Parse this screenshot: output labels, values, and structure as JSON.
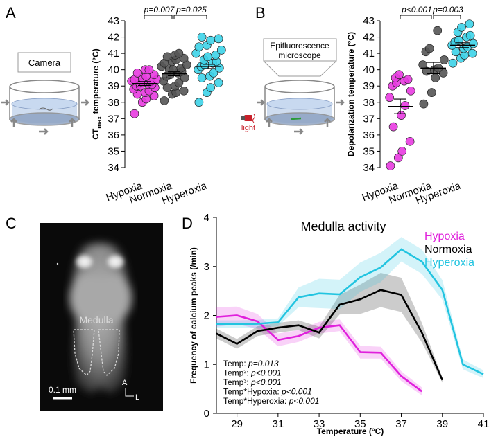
{
  "panels": {
    "A": {
      "label": "A",
      "camera_label": "Camera",
      "pvalues": [
        "p=0.007",
        "p=0.025"
      ],
      "ylabel_main": "CT",
      "ylabel_sub": "max",
      "ylabel_rest": " temperature (°C)"
    },
    "B": {
      "label": "B",
      "scope_label_line1": "Epifluorescence",
      "scope_label_line2": "microscope",
      "light_label": "light",
      "pvalues": [
        "p<0.001",
        "p=0.003"
      ]
    },
    "C": {
      "label": "C",
      "region_label": "Medulla",
      "scale_label": "0.1 mm",
      "axis_a": "A",
      "axis_l": "L"
    },
    "D": {
      "label": "D",
      "stats_lines": [
        {
          "prefix": "Temp:  ",
          "value": "p=0.013"
        },
        {
          "prefix": "Temp²: ",
          "value": "p<0.001"
        },
        {
          "prefix": "Temp³: ",
          "value": "p<0.001"
        },
        {
          "prefix": "Temp*Hypoxia: ",
          "value": "p<0.001"
        },
        {
          "prefix": "Temp*Hyperoxia: ",
          "value": "p<0.001"
        }
      ]
    }
  },
  "colors": {
    "hypoxia": "#e83be0",
    "normoxia": "#555555",
    "hyperoxia": "#3dd3e8",
    "line_hypoxia": "#e020dc",
    "line_normoxia": "#000000",
    "line_hyperoxia": "#22c4e0"
  },
  "chart_data": [
    {
      "type": "scatter",
      "panel": "A",
      "title": "",
      "ylabel": "CTmax temperature (°C)",
      "ylim": [
        34,
        43
      ],
      "yticks": [
        34,
        35,
        36,
        37,
        38,
        39,
        40,
        41,
        42,
        43
      ],
      "categories": [
        "Hypoxia",
        "Normoxia",
        "Hyperoxia"
      ],
      "series": [
        {
          "name": "Hypoxia",
          "mean": 39.15,
          "sem": 0.12,
          "values": [
            37.3,
            38.0,
            38.2,
            38.4,
            38.5,
            38.6,
            38.7,
            38.8,
            38.9,
            39.0,
            39.0,
            39.1,
            39.1,
            39.2,
            39.2,
            39.3,
            39.3,
            39.4,
            39.4,
            39.5,
            39.6,
            39.7,
            39.8,
            40.0,
            40.0
          ]
        },
        {
          "name": "Normoxia",
          "mean": 39.75,
          "sem": 0.12,
          "values": [
            38.1,
            38.5,
            38.6,
            38.7,
            38.9,
            39.0,
            39.2,
            39.3,
            39.5,
            39.6,
            39.7,
            39.8,
            39.9,
            40.0,
            40.0,
            40.1,
            40.2,
            40.3,
            40.4,
            40.5,
            40.6,
            40.7,
            40.8,
            40.9,
            41.0
          ]
        },
        {
          "name": "Hyperoxia",
          "mean": 40.2,
          "sem": 0.13,
          "values": [
            38.0,
            38.6,
            38.9,
            39.2,
            39.5,
            39.6,
            39.8,
            40.0,
            40.1,
            40.2,
            40.3,
            40.4,
            40.5,
            40.6,
            40.8,
            40.9,
            41.0,
            41.2,
            41.4,
            41.5,
            41.8,
            41.9,
            42.0
          ]
        }
      ],
      "comparisons": [
        {
          "from": "Hypoxia",
          "to": "Normoxia",
          "label": "p=0.007"
        },
        {
          "from": "Normoxia",
          "to": "Hyperoxia",
          "label": "p=0.025"
        }
      ]
    },
    {
      "type": "scatter",
      "panel": "B",
      "title": "",
      "ylabel": "Depolarization temperature (°C)",
      "ylim": [
        34,
        43
      ],
      "yticks": [
        34,
        35,
        36,
        37,
        38,
        39,
        40,
        41,
        42,
        43
      ],
      "categories": [
        "Hypoxia",
        "Normoxia",
        "Hyperoxia"
      ],
      "series": [
        {
          "name": "Hypoxia",
          "mean": 37.75,
          "sem": 0.45,
          "values": [
            34.1,
            34.6,
            35.0,
            35.6,
            36.5,
            37.2,
            37.8,
            38.3,
            38.7,
            39.0,
            39.2,
            39.3,
            39.4,
            39.5,
            39.7
          ]
        },
        {
          "name": "Normoxia",
          "mean": 40.1,
          "sem": 0.35,
          "values": [
            37.9,
            38.6,
            39.5,
            39.8,
            39.9,
            40.0,
            40.1,
            40.3,
            40.6,
            41.1,
            41.3,
            42.4
          ]
        },
        {
          "name": "Hyperoxia",
          "mean": 41.5,
          "sem": 0.15,
          "values": [
            40.4,
            40.7,
            40.9,
            41.0,
            41.1,
            41.3,
            41.4,
            41.5,
            41.6,
            41.7,
            41.8,
            42.0,
            42.1,
            42.3,
            42.6,
            42.8
          ]
        }
      ],
      "comparisons": [
        {
          "from": "Hypoxia",
          "to": "Normoxia",
          "label": "p<0.001"
        },
        {
          "from": "Normoxia",
          "to": "Hyperoxia",
          "label": "p=0.003"
        }
      ]
    },
    {
      "type": "line",
      "panel": "D",
      "title": "Medulla activity",
      "xlabel": "Temperature (°C)",
      "ylabel": "Frequency of calcium peaks (/min)",
      "xlim": [
        28,
        41
      ],
      "ylim": [
        0,
        4
      ],
      "xticks": [
        29,
        31,
        33,
        35,
        37,
        39,
        41
      ],
      "yticks": [
        0,
        1,
        2,
        3,
        4
      ],
      "legend": "top-right",
      "series": [
        {
          "name": "Hypoxia",
          "x": [
            28,
            29,
            30,
            31,
            32,
            33,
            34,
            35,
            36,
            37,
            38
          ],
          "y": [
            1.97,
            2.0,
            1.88,
            1.5,
            1.58,
            1.75,
            1.8,
            1.25,
            1.24,
            0.76,
            0.45
          ],
          "err": [
            0.2,
            0.18,
            0.15,
            0.13,
            0.12,
            0.12,
            0.12,
            0.13,
            0.12,
            0.1,
            0.08
          ]
        },
        {
          "name": "Normoxia",
          "x": [
            28,
            29,
            30,
            31,
            32,
            33,
            34,
            35,
            36,
            37,
            38,
            39
          ],
          "y": [
            1.63,
            1.42,
            1.68,
            1.75,
            1.8,
            1.65,
            2.22,
            2.33,
            2.52,
            2.42,
            1.65,
            0.68
          ],
          "err": [
            0.1,
            0.1,
            0.1,
            0.1,
            0.1,
            0.12,
            0.2,
            0.3,
            0.35,
            0.35,
            0.2,
            0.05
          ]
        },
        {
          "name": "Hyperoxia",
          "x": [
            28,
            29,
            30,
            31,
            32,
            33,
            34,
            35,
            36,
            37,
            38,
            39,
            40,
            41
          ],
          "y": [
            1.82,
            1.82,
            1.83,
            1.86,
            2.37,
            2.45,
            2.43,
            2.78,
            2.98,
            3.35,
            3.1,
            2.52,
            1.0,
            0.8
          ],
          "err": [
            0.08,
            0.08,
            0.08,
            0.08,
            0.2,
            0.3,
            0.3,
            0.3,
            0.3,
            0.25,
            0.25,
            0.2,
            0.1,
            0.08
          ]
        }
      ]
    }
  ]
}
